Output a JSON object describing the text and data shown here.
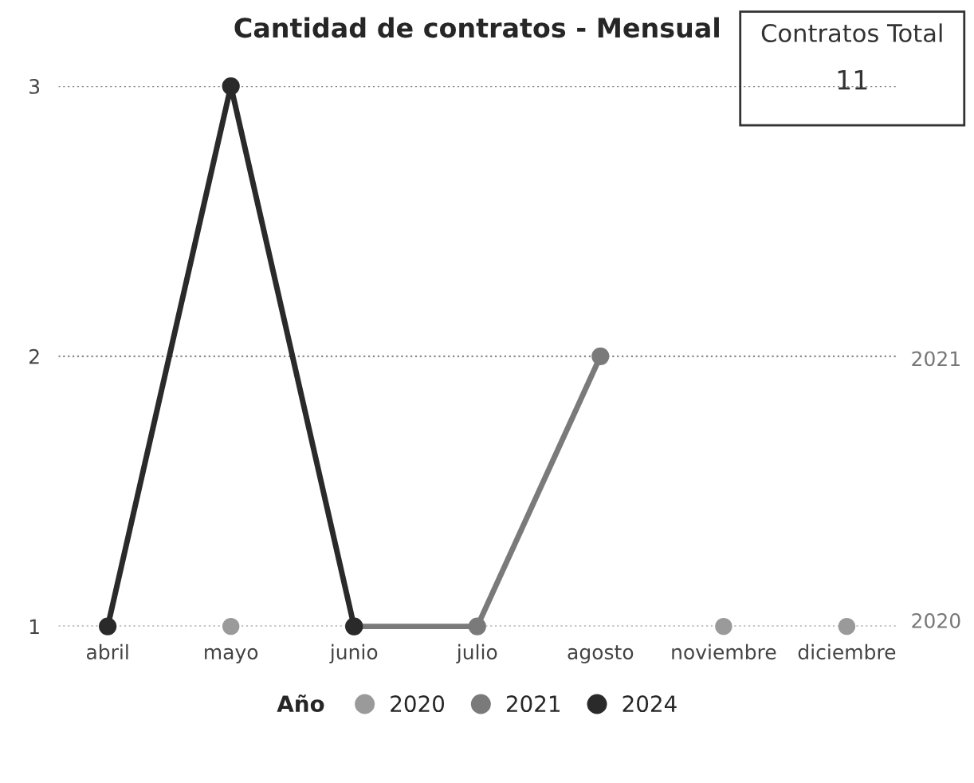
{
  "chart_data": {
    "type": "line",
    "title": "Cantidad de contratos - Mensual",
    "categories": [
      "abril",
      "mayo",
      "junio",
      "julio",
      "agosto",
      "noviembre",
      "diciembre"
    ],
    "series": [
      {
        "name": "2020",
        "color": "#9a9a9a",
        "type": "scatter",
        "values": [
          null,
          1,
          null,
          null,
          null,
          1,
          1
        ]
      },
      {
        "name": "2021",
        "color": "#7a7a7a",
        "values": [
          null,
          null,
          1,
          1,
          2,
          null,
          null
        ]
      },
      {
        "name": "2024",
        "color": "#2a2a2a",
        "values": [
          1,
          3,
          1,
          null,
          null,
          null,
          null
        ]
      }
    ],
    "ylim": [
      1,
      3
    ],
    "yticks": [
      1,
      2,
      3
    ],
    "grid": "y",
    "marker": "circle",
    "legend": "bottom",
    "legend_title": "Año",
    "annotations": [
      "2021",
      "2020",
      "Contratos Total",
      "11"
    ]
  }
}
